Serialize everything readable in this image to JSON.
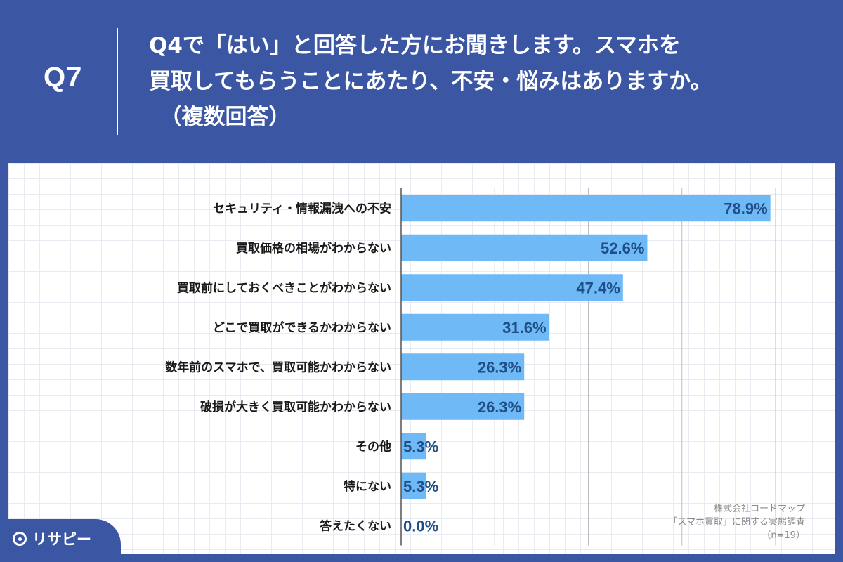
{
  "header": {
    "qnum": "Q7",
    "question": "Q4で「はい」と回答した方にお聞きします。スマホを\n買取してもらうことにあたり、不安・悩みはありますか。\n　（複数回答）"
  },
  "chart_data": {
    "type": "bar",
    "orientation": "horizontal",
    "categories": [
      "セキュリティ・情報漏洩への不安",
      "買取価格の相場がわからない",
      "買取前にしておくべきことがわからない",
      "どこで買取ができるかわからない",
      "数年前のスマホで、買取可能かわからない",
      "破損が大きく買取可能かわからない",
      "その他",
      "特にない",
      "答えたくない"
    ],
    "values": [
      78.9,
      52.6,
      47.4,
      31.6,
      26.3,
      26.3,
      5.3,
      5.3,
      0.0
    ],
    "value_labels": [
      "78.9%",
      "52.6%",
      "47.4%",
      "31.6%",
      "26.3%",
      "26.3%",
      "5.3%",
      "5.3%",
      "0.0%"
    ],
    "xlim": [
      0,
      80
    ],
    "grid": true,
    "bar_color": "#6fb9f6",
    "value_label_color": "#1f4f86"
  },
  "source": {
    "company": "株式会社ロードマップ",
    "survey": "「スマホ買取」に関する実態調査",
    "n": "（n=19）"
  },
  "logo": {
    "text": "リサピー"
  }
}
